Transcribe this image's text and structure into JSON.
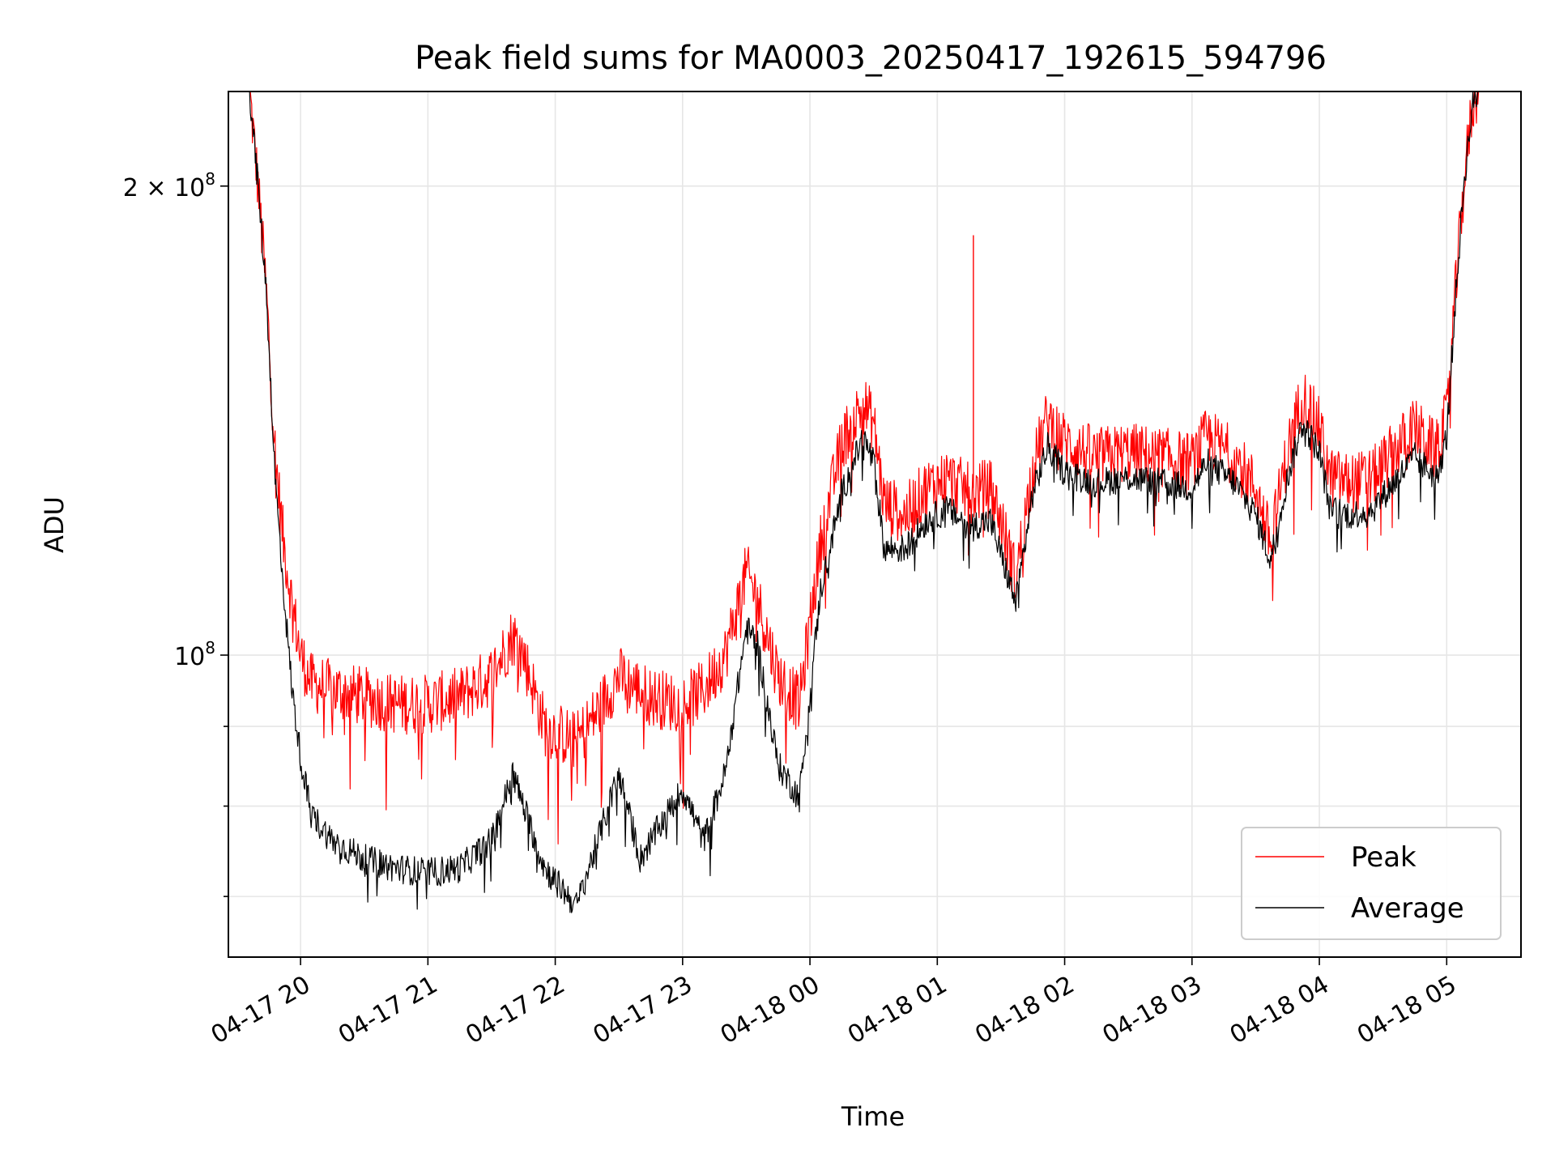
{
  "chart_data": {
    "type": "line",
    "title": "Peak field sums for MA0003_20250417_192615_594796",
    "xlabel": "Time",
    "ylabel": "ADU",
    "yscale": "log",
    "ylim": [
      64000000,
      230000000
    ],
    "xlim": [
      "2025-04-17 19:26",
      "2025-04-18 05:35"
    ],
    "grid": true,
    "legend_position": "lower-right",
    "x_ticks": [
      "04-17 20",
      "04-17 21",
      "04-17 22",
      "04-17 23",
      "04-18 00",
      "04-18 01",
      "04-18 02",
      "04-18 03",
      "04-18 04",
      "04-18 05"
    ],
    "x_tick_times": [
      "2025-04-17 20:00",
      "2025-04-17 21:00",
      "2025-04-17 22:00",
      "2025-04-17 23:00",
      "2025-04-18 00:00",
      "2025-04-18 01:00",
      "2025-04-18 02:00",
      "2025-04-18 03:00",
      "2025-04-18 04:00",
      "2025-04-18 05:00"
    ],
    "y_major_ticks": [
      {
        "value": 100000000,
        "base": "10",
        "exp": "8"
      },
      {
        "value": 200000000,
        "base": "2 × 10",
        "exp": "8"
      }
    ],
    "y_minor_ticks": [
      70000000,
      80000000,
      90000000
    ],
    "series": [
      {
        "name": "Peak",
        "color": "#ff0000",
        "noise": 0.045,
        "points": [
          [
            "2025-04-17 19:26",
            230000000
          ],
          [
            "2025-04-17 19:36",
            230000000
          ],
          [
            "2025-04-17 19:40",
            200000000
          ],
          [
            "2025-04-17 19:44",
            170000000
          ],
          [
            "2025-04-17 19:48",
            135000000
          ],
          [
            "2025-04-17 19:52",
            118000000
          ],
          [
            "2025-04-17 19:56",
            108000000
          ],
          [
            "2025-04-17 20:00",
            100000000
          ],
          [
            "2025-04-17 20:05",
            96000000
          ],
          [
            "2025-04-17 20:15",
            95000000
          ],
          [
            "2025-04-17 20:30",
            94000000
          ],
          [
            "2025-04-17 20:45",
            93000000
          ],
          [
            "2025-04-17 21:00",
            93000000
          ],
          [
            "2025-04-17 21:15",
            94000000
          ],
          [
            "2025-04-17 21:30",
            97000000
          ],
          [
            "2025-04-17 21:40",
            103000000
          ],
          [
            "2025-04-17 21:45",
            100000000
          ],
          [
            "2025-04-17 21:55",
            90000000
          ],
          [
            "2025-04-17 22:10",
            88000000
          ],
          [
            "2025-04-17 22:20",
            92000000
          ],
          [
            "2025-04-17 22:30",
            97000000
          ],
          [
            "2025-04-17 22:45",
            94000000
          ],
          [
            "2025-04-17 23:00",
            93000000
          ],
          [
            "2025-04-17 23:10",
            95000000
          ],
          [
            "2025-04-17 23:20",
            100000000
          ],
          [
            "2025-04-17 23:30",
            113000000
          ],
          [
            "2025-04-17 23:35",
            109000000
          ],
          [
            "2025-04-17 23:45",
            97000000
          ],
          [
            "2025-04-17 23:55",
            93000000
          ],
          [
            "2025-04-18 00:05",
            118000000
          ],
          [
            "2025-04-18 00:15",
            137000000
          ],
          [
            "2025-04-18 00:25",
            145000000
          ],
          [
            "2025-04-18 00:30",
            141000000
          ],
          [
            "2025-04-18 00:35",
            125000000
          ],
          [
            "2025-04-18 00:45",
            123000000
          ],
          [
            "2025-04-18 00:55",
            128000000
          ],
          [
            "2025-04-18 01:05",
            130000000
          ],
          [
            "2025-04-18 01:15",
            127000000
          ],
          [
            "2025-04-18 01:25",
            128000000
          ],
          [
            "2025-04-18 01:30",
            122000000
          ],
          [
            "2025-04-18 01:37",
            112000000
          ],
          [
            "2025-04-18 01:45",
            132000000
          ],
          [
            "2025-04-18 01:52",
            142000000
          ],
          [
            "2025-04-18 02:00",
            137000000
          ],
          [
            "2025-04-18 02:15",
            134000000
          ],
          [
            "2025-04-18 02:30",
            135000000
          ],
          [
            "2025-04-18 02:45",
            134000000
          ],
          [
            "2025-04-18 03:00",
            133000000
          ],
          [
            "2025-04-18 03:07",
            138000000
          ],
          [
            "2025-04-18 03:20",
            134000000
          ],
          [
            "2025-04-18 03:30",
            128000000
          ],
          [
            "2025-04-18 03:37",
            118000000
          ],
          [
            "2025-04-18 03:45",
            135000000
          ],
          [
            "2025-04-18 03:52",
            147000000
          ],
          [
            "2025-04-18 04:00",
            140000000
          ],
          [
            "2025-04-18 04:05",
            130000000
          ],
          [
            "2025-04-18 04:15",
            129000000
          ],
          [
            "2025-04-18 04:25",
            130000000
          ],
          [
            "2025-04-18 04:35",
            135000000
          ],
          [
            "2025-04-18 04:45",
            140000000
          ],
          [
            "2025-04-18 04:55",
            135000000
          ],
          [
            "2025-04-18 05:00",
            142000000
          ],
          [
            "2025-04-18 05:04",
            170000000
          ],
          [
            "2025-04-18 05:08",
            200000000
          ],
          [
            "2025-04-18 05:12",
            225000000
          ],
          [
            "2025-04-18 05:15",
            230000000
          ],
          [
            "2025-04-18 05:35",
            230000000
          ]
        ],
        "spikes": [
          [
            "2025-04-18 01:17",
            186000000
          ]
        ]
      },
      {
        "name": "Average",
        "color": "#000000",
        "noise": 0.022,
        "points": [
          [
            "2025-04-17 19:26",
            230000000
          ],
          [
            "2025-04-17 19:36",
            230000000
          ],
          [
            "2025-04-17 19:40",
            200000000
          ],
          [
            "2025-04-17 19:44",
            170000000
          ],
          [
            "2025-04-17 19:48",
            130000000
          ],
          [
            "2025-04-17 19:52",
            110000000
          ],
          [
            "2025-04-17 19:56",
            95000000
          ],
          [
            "2025-04-17 20:00",
            86000000
          ],
          [
            "2025-04-17 20:05",
            79000000
          ],
          [
            "2025-04-17 20:15",
            76000000
          ],
          [
            "2025-04-17 20:30",
            74000000
          ],
          [
            "2025-04-17 20:45",
            73000000
          ],
          [
            "2025-04-17 21:00",
            72500000
          ],
          [
            "2025-04-17 21:15",
            73000000
          ],
          [
            "2025-04-17 21:30",
            76000000
          ],
          [
            "2025-04-17 21:40",
            84000000
          ],
          [
            "2025-04-17 21:45",
            80000000
          ],
          [
            "2025-04-17 21:55",
            73000000
          ],
          [
            "2025-04-17 22:10",
            69000000
          ],
          [
            "2025-04-17 22:20",
            76000000
          ],
          [
            "2025-04-17 22:30",
            84000000
          ],
          [
            "2025-04-17 22:40",
            74000000
          ],
          [
            "2025-04-17 22:50",
            78000000
          ],
          [
            "2025-04-17 23:00",
            82000000
          ],
          [
            "2025-04-17 23:10",
            76000000
          ],
          [
            "2025-04-17 23:20",
            84000000
          ],
          [
            "2025-04-17 23:30",
            104000000
          ],
          [
            "2025-04-17 23:35",
            102000000
          ],
          [
            "2025-04-17 23:45",
            85000000
          ],
          [
            "2025-04-17 23:55",
            81000000
          ],
          [
            "2025-04-18 00:05",
            110000000
          ],
          [
            "2025-04-18 00:15",
            127000000
          ],
          [
            "2025-04-18 00:25",
            138000000
          ],
          [
            "2025-04-18 00:30",
            133000000
          ],
          [
            "2025-04-18 00:35",
            117000000
          ],
          [
            "2025-04-18 00:45",
            117000000
          ],
          [
            "2025-04-18 00:55",
            122000000
          ],
          [
            "2025-04-18 01:05",
            124000000
          ],
          [
            "2025-04-18 01:15",
            121000000
          ],
          [
            "2025-04-18 01:25",
            122000000
          ],
          [
            "2025-04-18 01:30",
            116000000
          ],
          [
            "2025-04-18 01:37",
            108000000
          ],
          [
            "2025-04-18 01:45",
            127000000
          ],
          [
            "2025-04-18 01:52",
            136000000
          ],
          [
            "2025-04-18 02:00",
            131000000
          ],
          [
            "2025-04-18 02:15",
            129000000
          ],
          [
            "2025-04-18 02:30",
            130000000
          ],
          [
            "2025-04-18 02:45",
            129000000
          ],
          [
            "2025-04-18 03:00",
            128000000
          ],
          [
            "2025-04-18 03:07",
            133000000
          ],
          [
            "2025-04-18 03:20",
            129000000
          ],
          [
            "2025-04-18 03:30",
            123000000
          ],
          [
            "2025-04-18 03:37",
            115000000
          ],
          [
            "2025-04-18 03:45",
            130000000
          ],
          [
            "2025-04-18 03:52",
            141000000
          ],
          [
            "2025-04-18 04:00",
            135000000
          ],
          [
            "2025-04-18 04:05",
            124000000
          ],
          [
            "2025-04-18 04:15",
            123000000
          ],
          [
            "2025-04-18 04:25",
            124000000
          ],
          [
            "2025-04-18 04:35",
            129000000
          ],
          [
            "2025-04-18 04:45",
            134000000
          ],
          [
            "2025-04-18 04:55",
            130000000
          ],
          [
            "2025-04-18 05:00",
            138000000
          ],
          [
            "2025-04-18 05:04",
            168000000
          ],
          [
            "2025-04-18 05:08",
            200000000
          ],
          [
            "2025-04-18 05:12",
            225000000
          ],
          [
            "2025-04-18 05:15",
            230000000
          ],
          [
            "2025-04-18 05:35",
            230000000
          ]
        ],
        "spikes": []
      }
    ]
  }
}
